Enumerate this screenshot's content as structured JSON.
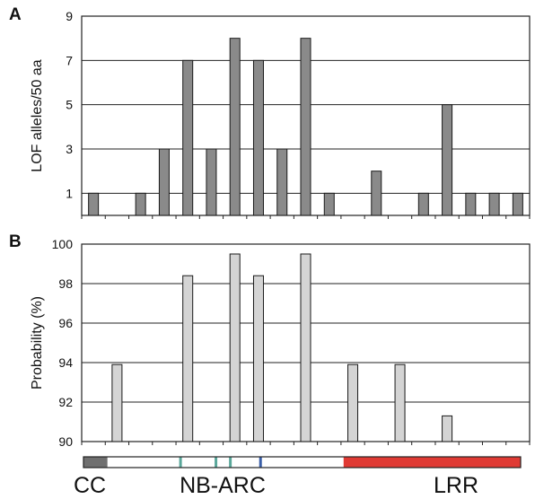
{
  "chart_data": [
    {
      "panel": "A",
      "type": "bar",
      "ylabel": "LOF alleles/50 aa",
      "xlabel": "",
      "ylim": [
        0,
        9
      ],
      "yticks": [
        1,
        3,
        5,
        7,
        9
      ],
      "grid": true,
      "bar_color": "#8a8a8a",
      "values": [
        1,
        0,
        1,
        3,
        7,
        3,
        8,
        7,
        3,
        8,
        1,
        0,
        2,
        0,
        1,
        5,
        1,
        1,
        1
      ]
    },
    {
      "panel": "B",
      "type": "bar",
      "ylabel": "Probability (%)",
      "xlabel": "",
      "ylim": [
        90,
        100
      ],
      "yticks": [
        90,
        92,
        94,
        96,
        98,
        100
      ],
      "grid": true,
      "bar_color": "#d4d4d4",
      "values": [
        null,
        93.9,
        null,
        null,
        98.4,
        null,
        99.5,
        98.4,
        null,
        99.5,
        null,
        93.9,
        null,
        93.9,
        null,
        91.3,
        null,
        null,
        null
      ]
    }
  ],
  "domain_map": {
    "segments": [
      {
        "name": "CC",
        "start": 0,
        "end": 0.055,
        "color": "#6f6f6f"
      },
      {
        "name": "NB-ARC",
        "start": 0.055,
        "end": 0.595,
        "color": "#ffffff"
      },
      {
        "name": "LRR",
        "start": 0.595,
        "end": 1.0,
        "color": "#e03a34"
      }
    ],
    "markers": [
      {
        "pos": 0.222,
        "color": "#5aa79a"
      },
      {
        "pos": 0.303,
        "color": "#5aa79a"
      },
      {
        "pos": 0.336,
        "color": "#5aa79a"
      },
      {
        "pos": 0.405,
        "color": "#3a5fa8"
      }
    ],
    "labels": [
      "CC",
      "NB-ARC",
      "LRR"
    ]
  }
}
